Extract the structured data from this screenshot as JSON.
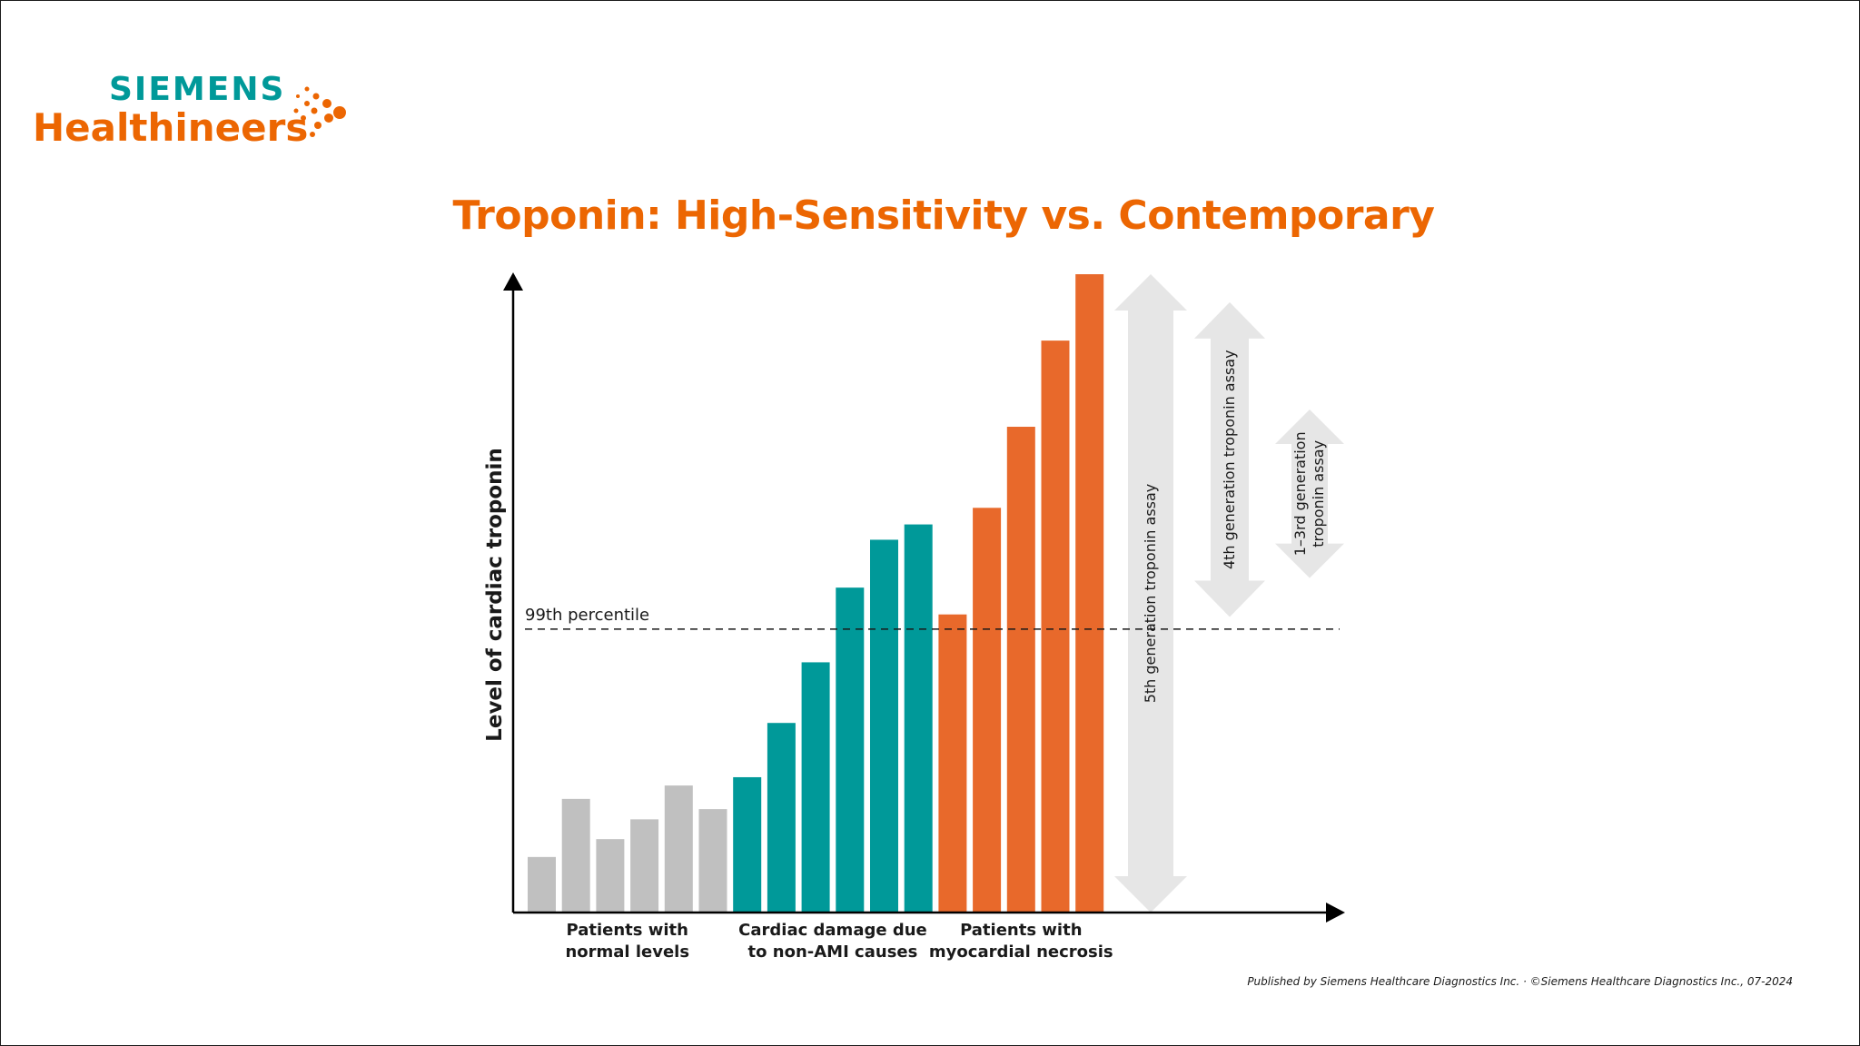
{
  "brand": {
    "line1": "SIEMENS",
    "line2": "Healthineers",
    "teal": "#009999",
    "orange": "#ec6602"
  },
  "footer": "Published by Siemens Healthcare Diagnostics Inc. · ©Siemens Healthcare Diagnostics Inc., 07-2024",
  "chart_data": {
    "type": "bar",
    "title": "Troponin: High-Sensitivity vs. Contemporary",
    "xlabel": "",
    "ylabel": "Level of cardiac troponin",
    "ylim": [
      0,
      100
    ],
    "grid": false,
    "reference_line": {
      "label": "99th percentile",
      "value": 44.4
    },
    "groups": [
      {
        "label_lines": [
          "Patients with",
          "normal levels"
        ],
        "color": "#c0c0c0",
        "values": [
          8.7,
          17.8,
          11.5,
          14.6,
          19.9,
          16.2
        ]
      },
      {
        "label_lines": [
          "Cardiac damage due",
          "to non-AMI causes"
        ],
        "color": "#009999",
        "values": [
          21.2,
          29.7,
          39.2,
          50.9,
          58.4,
          60.8
        ]
      },
      {
        "label_lines": [
          "Patients with",
          "myocardial necrosis"
        ],
        "color": "#e8692b",
        "values": [
          46.7,
          63.4,
          76.1,
          89.6,
          100
        ]
      }
    ],
    "assays": [
      {
        "label_lines": [
          "5th generation troponin assay"
        ],
        "min": 0,
        "max": 100
      },
      {
        "label_lines": [
          "4th generation troponin assay"
        ],
        "min": 46.3,
        "max": 95.6
      },
      {
        "label_lines": [
          "1–3rd generation",
          "troponin assay"
        ],
        "min": 52.4,
        "max": 78.8
      }
    ]
  }
}
